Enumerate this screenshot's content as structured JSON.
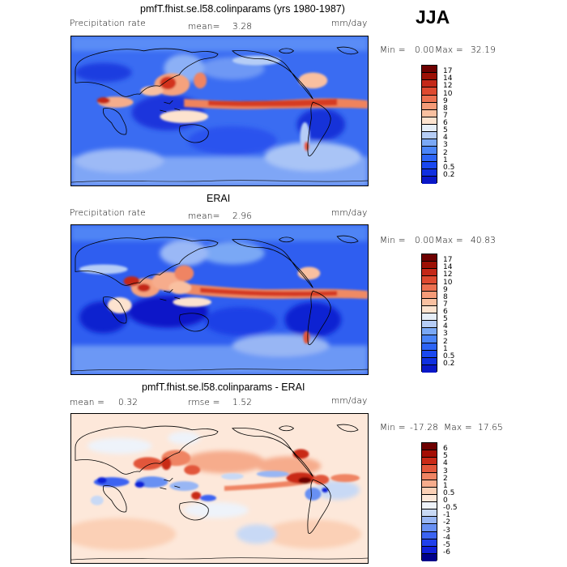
{
  "season": "JJA",
  "palette": {
    "precip": [
      "#00008b",
      "#0a18c8",
      "#1030e0",
      "#1a48f0",
      "#2d64f5",
      "#4a84f8",
      "#7aa8f5",
      "#b6cdf6",
      "#e6eef8",
      "#fde3cf",
      "#f9c0a0",
      "#f59b78",
      "#ec7050",
      "#de4a30",
      "#c42818",
      "#9c1005",
      "#6e0000"
    ],
    "diff": [
      "#00008b",
      "#1020d8",
      "#2040ec",
      "#3c64f2",
      "#6890f3",
      "#98b6f4",
      "#c8d9f5",
      "#eef3fa",
      "#fde8da",
      "#fbd0b6",
      "#f6ac8c",
      "#ef8463",
      "#e2573b",
      "#c92a17",
      "#a40e04",
      "#6e0000"
    ]
  },
  "panels": [
    {
      "title": "pmfT.fhist.se.l58.colinparams (yrs 1980-1987)",
      "left_label": "Precipitation rate",
      "mean_label": "mean=",
      "mean_value": "3.28",
      "units": "mm/day",
      "min_label": "Min =",
      "min_value": "0.00",
      "max_label": "Max =",
      "max_value": "32.19",
      "levels": [
        "17",
        "14",
        "12",
        "10",
        "9",
        "8",
        "7",
        "6",
        "5",
        "4",
        "3",
        "2",
        "1",
        "0.5",
        "0.2"
      ]
    },
    {
      "title": "ERAI",
      "left_label": "Precipitation rate",
      "mean_label": "mean=",
      "mean_value": "2.96",
      "units": "mm/day",
      "min_label": "Min =",
      "min_value": "0.00",
      "max_label": "Max =",
      "max_value": "40.83",
      "levels": [
        "17",
        "14",
        "12",
        "10",
        "9",
        "8",
        "7",
        "6",
        "5",
        "4",
        "3",
        "2",
        "1",
        "0.5",
        "0.2"
      ]
    },
    {
      "title": "pmfT.fhist.se.l58.colinparams - ERAI",
      "mean_label": "mean =",
      "mean_value": "0.32",
      "rmse_label": "rmse =",
      "rmse_value": "1.52",
      "units": "mm/day",
      "min_label": "Min =",
      "min_value": "-17.28",
      "max_label": "Max =",
      "max_value": "17.65",
      "levels": [
        "6",
        "5",
        "4",
        "3",
        "2",
        "1",
        "0.5",
        "0",
        "-0.5",
        "-1",
        "-2",
        "-3",
        "-4",
        "-5",
        "-6"
      ]
    }
  ]
}
